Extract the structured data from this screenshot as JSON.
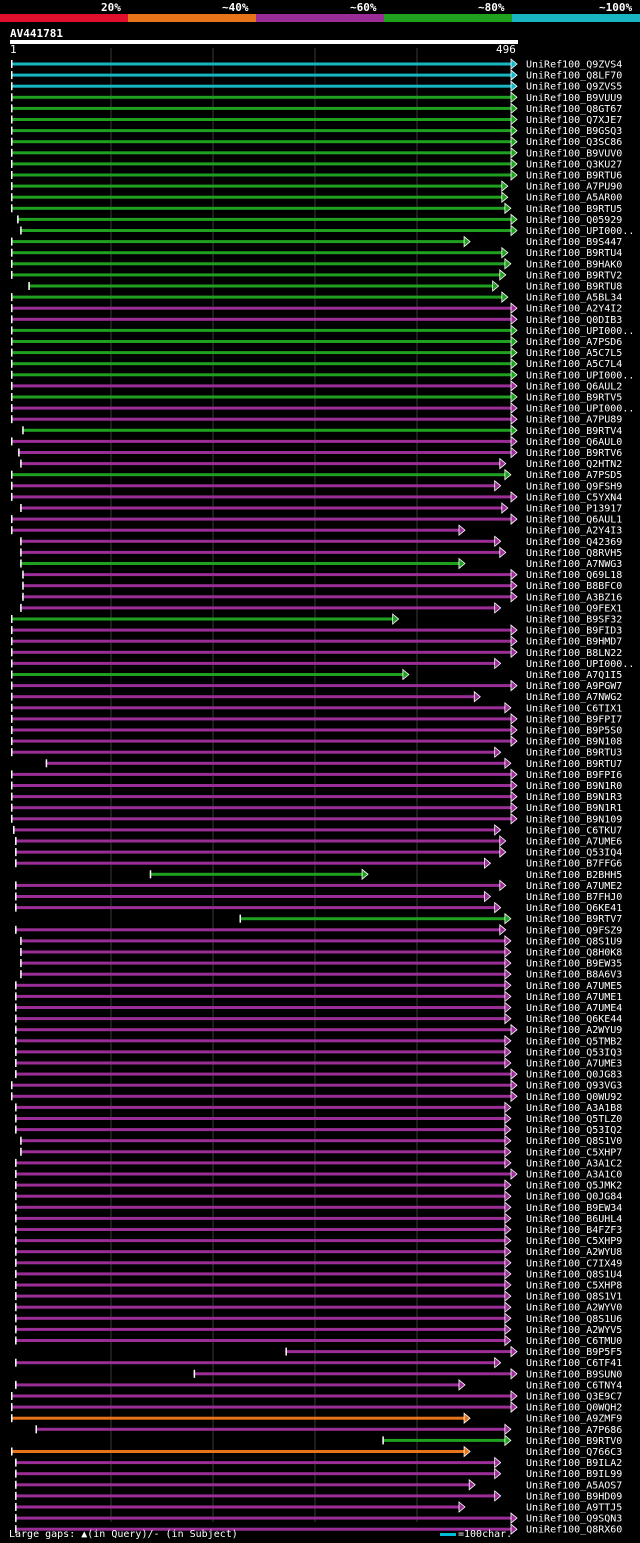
{
  "legend": {
    "items": [
      {
        "label": "20%",
        "color": "#e0102c"
      },
      {
        "label": "~40%",
        "color": "#e8741a"
      },
      {
        "label": "~60%",
        "color": "#9b2d96"
      },
      {
        "label": "~80%",
        "color": "#1fa01f"
      },
      {
        "label": "~100%",
        "color": "#17b6c2"
      }
    ]
  },
  "query": {
    "name": "AV441781",
    "start": "1",
    "end": "496"
  },
  "footer": {
    "gaps_text": "Large gaps: ▲(in Query)/- (in Subject)",
    "scale_text": "=100char."
  },
  "chart_data": {
    "type": "alignment-map",
    "query_length": 496,
    "hits": [
      {
        "id": "UniRef100_Q9ZVS4",
        "start": 1,
        "end": 496,
        "color": "cyan"
      },
      {
        "id": "UniRef100_Q8LF70",
        "start": 1,
        "end": 496,
        "color": "cyan"
      },
      {
        "id": "UniRef100_Q9ZVS5",
        "start": 1,
        "end": 496,
        "color": "cyan"
      },
      {
        "id": "UniRef100_B9VUU9",
        "start": 1,
        "end": 496,
        "color": "green"
      },
      {
        "id": "UniRef100_Q8GT67",
        "start": 1,
        "end": 496,
        "color": "green"
      },
      {
        "id": "UniRef100_Q7XJE7",
        "start": 1,
        "end": 496,
        "color": "green"
      },
      {
        "id": "UniRef100_B9GSQ3",
        "start": 1,
        "end": 496,
        "color": "green"
      },
      {
        "id": "UniRef100_Q3SC86",
        "start": 1,
        "end": 496,
        "color": "green"
      },
      {
        "id": "UniRef100_B9VUV0",
        "start": 1,
        "end": 496,
        "color": "green"
      },
      {
        "id": "UniRef100_Q3KU27",
        "start": 1,
        "end": 496,
        "color": "green"
      },
      {
        "id": "UniRef100_B9RTU6",
        "start": 1,
        "end": 496,
        "color": "green"
      },
      {
        "id": "UniRef100_A7PU90",
        "start": 1,
        "end": 487,
        "color": "green"
      },
      {
        "id": "UniRef100_A5AR00",
        "start": 1,
        "end": 487,
        "color": "green"
      },
      {
        "id": "UniRef100_B9RTU5",
        "start": 1,
        "end": 490,
        "color": "green"
      },
      {
        "id": "UniRef100_Q05929",
        "start": 7,
        "end": 496,
        "color": "green"
      },
      {
        "id": "UniRef100_UPI000..",
        "start": 10,
        "end": 496,
        "color": "green"
      },
      {
        "id": "UniRef100_B9S447",
        "start": 1,
        "end": 450,
        "color": "green"
      },
      {
        "id": "UniRef100_B9RTU4",
        "start": 1,
        "end": 487,
        "color": "green"
      },
      {
        "id": "UniRef100_B9HAK0",
        "start": 1,
        "end": 490,
        "color": "green"
      },
      {
        "id": "UniRef100_B9RTV2",
        "start": 1,
        "end": 485,
        "color": "green"
      },
      {
        "id": "UniRef100_B9RTU8",
        "start": 18,
        "end": 478,
        "color": "green"
      },
      {
        "id": "UniRef100_A5BL34",
        "start": 1,
        "end": 487,
        "color": "green"
      },
      {
        "id": "UniRef100_A2Y4I2",
        "start": 1,
        "end": 496,
        "color": "magenta"
      },
      {
        "id": "UniRef100_Q0DIB3",
        "start": 1,
        "end": 496,
        "color": "magenta"
      },
      {
        "id": "UniRef100_UPI000..",
        "start": 1,
        "end": 496,
        "color": "green"
      },
      {
        "id": "UniRef100_A7PSD6",
        "start": 1,
        "end": 496,
        "color": "green"
      },
      {
        "id": "UniRef100_A5C7L5",
        "start": 1,
        "end": 496,
        "color": "green"
      },
      {
        "id": "UniRef100_A5C7L4",
        "start": 1,
        "end": 496,
        "color": "green"
      },
      {
        "id": "UniRef100_UPI000..",
        "start": 1,
        "end": 496,
        "color": "green"
      },
      {
        "id": "UniRef100_Q6AUL2",
        "start": 1,
        "end": 496,
        "color": "magenta"
      },
      {
        "id": "UniRef100_B9RTV5",
        "start": 1,
        "end": 496,
        "color": "green"
      },
      {
        "id": "UniRef100_UPI000..",
        "start": 1,
        "end": 496,
        "color": "magenta"
      },
      {
        "id": "UniRef100_A7PU89",
        "start": 1,
        "end": 496,
        "color": "magenta"
      },
      {
        "id": "UniRef100_B9RTV4",
        "start": 12,
        "end": 496,
        "color": "green"
      },
      {
        "id": "UniRef100_Q6AUL0",
        "start": 1,
        "end": 496,
        "color": "magenta"
      },
      {
        "id": "UniRef100_B9RTV6",
        "start": 8,
        "end": 496,
        "color": "magenta"
      },
      {
        "id": "UniRef100_Q2HTN2",
        "start": 10,
        "end": 485,
        "color": "magenta"
      },
      {
        "id": "UniRef100_A7PSD5",
        "start": 1,
        "end": 490,
        "color": "green"
      },
      {
        "id": "UniRef100_Q9FSH9",
        "start": 1,
        "end": 480,
        "color": "magenta"
      },
      {
        "id": "UniRef100_C5YXN4",
        "start": 1,
        "end": 496,
        "color": "magenta"
      },
      {
        "id": "UniRef100_P13917",
        "start": 10,
        "end": 487,
        "color": "magenta"
      },
      {
        "id": "UniRef100_Q6AUL1",
        "start": 1,
        "end": 496,
        "color": "magenta"
      },
      {
        "id": "UniRef100_A2Y4I3",
        "start": 1,
        "end": 445,
        "color": "magenta"
      },
      {
        "id": "UniRef100_Q42369",
        "start": 10,
        "end": 480,
        "color": "magenta"
      },
      {
        "id": "UniRef100_Q8RVH5",
        "start": 10,
        "end": 485,
        "color": "magenta"
      },
      {
        "id": "UniRef100_A7NWG3",
        "start": 10,
        "end": 445,
        "color": "green"
      },
      {
        "id": "UniRef100_Q69L18",
        "start": 12,
        "end": 496,
        "color": "magenta"
      },
      {
        "id": "UniRef100_B8BFC0",
        "start": 12,
        "end": 496,
        "color": "magenta"
      },
      {
        "id": "UniRef100_A3BZ16",
        "start": 12,
        "end": 496,
        "color": "magenta"
      },
      {
        "id": "UniRef100_Q9FEX1",
        "start": 10,
        "end": 480,
        "color": "magenta"
      },
      {
        "id": "UniRef100_B9SF32",
        "start": 1,
        "end": 380,
        "color": "green"
      },
      {
        "id": "UniRef100_B9FID3",
        "start": 1,
        "end": 496,
        "color": "magenta"
      },
      {
        "id": "UniRef100_B9HMD7",
        "start": 1,
        "end": 496,
        "color": "magenta"
      },
      {
        "id": "UniRef100_B8LN22",
        "start": 1,
        "end": 496,
        "color": "magenta"
      },
      {
        "id": "UniRef100_UPI000..",
        "start": 1,
        "end": 480,
        "color": "magenta"
      },
      {
        "id": "UniRef100_A7Q1I5",
        "start": 1,
        "end": 390,
        "color": "green"
      },
      {
        "id": "UniRef100_A9PGW7",
        "start": 1,
        "end": 496,
        "color": "magenta"
      },
      {
        "id": "UniRef100_A7NWG2",
        "start": 1,
        "end": 460,
        "color": "magenta"
      },
      {
        "id": "UniRef100_C6TIX1",
        "start": 1,
        "end": 490,
        "color": "magenta"
      },
      {
        "id": "UniRef100_B9FPI7",
        "start": 1,
        "end": 496,
        "color": "magenta"
      },
      {
        "id": "UniRef100_B9P5S0",
        "start": 1,
        "end": 496,
        "color": "magenta"
      },
      {
        "id": "UniRef100_B9N108",
        "start": 1,
        "end": 496,
        "color": "magenta"
      },
      {
        "id": "UniRef100_B9RTU3",
        "start": 1,
        "end": 480,
        "color": "magenta"
      },
      {
        "id": "UniRef100_B9RTU7",
        "start": 35,
        "end": 490,
        "color": "magenta"
      },
      {
        "id": "UniRef100_B9FPI6",
        "start": 1,
        "end": 496,
        "color": "magenta"
      },
      {
        "id": "UniRef100_B9N1R0",
        "start": 1,
        "end": 496,
        "color": "magenta"
      },
      {
        "id": "UniRef100_B9N1R3",
        "start": 1,
        "end": 496,
        "color": "magenta"
      },
      {
        "id": "UniRef100_B9N1R1",
        "start": 1,
        "end": 496,
        "color": "magenta"
      },
      {
        "id": "UniRef100_B9N109",
        "start": 1,
        "end": 496,
        "color": "magenta"
      },
      {
        "id": "UniRef100_C6TKU7",
        "start": 3,
        "end": 480,
        "color": "magenta"
      },
      {
        "id": "UniRef100_A7UME6",
        "start": 5,
        "end": 485,
        "color": "magenta"
      },
      {
        "id": "UniRef100_Q53IQ4",
        "start": 5,
        "end": 485,
        "color": "magenta"
      },
      {
        "id": "UniRef100_B7FFG6",
        "start": 5,
        "end": 470,
        "color": "magenta"
      },
      {
        "id": "UniRef100_B2BHH5",
        "start": 137,
        "end": 350,
        "color": "green"
      },
      {
        "id": "UniRef100_A7UME2",
        "start": 5,
        "end": 485,
        "color": "magenta"
      },
      {
        "id": "UniRef100_B7FHJ0",
        "start": 5,
        "end": 470,
        "color": "magenta"
      },
      {
        "id": "UniRef100_Q6KE41",
        "start": 5,
        "end": 480,
        "color": "magenta"
      },
      {
        "id": "UniRef100_B9RTV7",
        "start": 225,
        "end": 490,
        "color": "green"
      },
      {
        "id": "UniRef100_Q9FSZ9",
        "start": 5,
        "end": 485,
        "color": "magenta"
      },
      {
        "id": "UniRef100_Q8S1U9",
        "start": 10,
        "end": 490,
        "color": "magenta"
      },
      {
        "id": "UniRef100_Q8H0K8",
        "start": 10,
        "end": 490,
        "color": "magenta"
      },
      {
        "id": "UniRef100_B9EW35",
        "start": 10,
        "end": 490,
        "color": "magenta"
      },
      {
        "id": "UniRef100_B8A6V3",
        "start": 10,
        "end": 490,
        "color": "magenta"
      },
      {
        "id": "UniRef100_A7UME5",
        "start": 5,
        "end": 490,
        "color": "magenta"
      },
      {
        "id": "UniRef100_A7UME1",
        "start": 5,
        "end": 490,
        "color": "magenta"
      },
      {
        "id": "UniRef100_A7UME4",
        "start": 5,
        "end": 490,
        "color": "magenta"
      },
      {
        "id": "UniRef100_Q6KE44",
        "start": 5,
        "end": 490,
        "color": "magenta"
      },
      {
        "id": "UniRef100_A2WYU9",
        "start": 5,
        "end": 496,
        "color": "magenta"
      },
      {
        "id": "UniRef100_Q5TMB2",
        "start": 5,
        "end": 490,
        "color": "magenta"
      },
      {
        "id": "UniRef100_Q53IQ3",
        "start": 5,
        "end": 490,
        "color": "magenta"
      },
      {
        "id": "UniRef100_A7UME3",
        "start": 5,
        "end": 490,
        "color": "magenta"
      },
      {
        "id": "UniRef100_Q0JG83",
        "start": 5,
        "end": 496,
        "color": "magenta"
      },
      {
        "id": "UniRef100_Q93VG3",
        "start": 1,
        "end": 496,
        "color": "magenta"
      },
      {
        "id": "UniRef100_Q0WU92",
        "start": 1,
        "end": 496,
        "color": "magenta"
      },
      {
        "id": "UniRef100_A3A1B8",
        "start": 5,
        "end": 490,
        "color": "magenta"
      },
      {
        "id": "UniRef100_Q5TLZ0",
        "start": 5,
        "end": 490,
        "color": "magenta"
      },
      {
        "id": "UniRef100_Q53IQ2",
        "start": 5,
        "end": 490,
        "color": "magenta"
      },
      {
        "id": "UniRef100_Q8S1V0",
        "start": 10,
        "end": 490,
        "color": "magenta"
      },
      {
        "id": "UniRef100_C5XHP7",
        "start": 10,
        "end": 490,
        "color": "magenta"
      },
      {
        "id": "UniRef100_A3A1C2",
        "start": 5,
        "end": 490,
        "color": "magenta"
      },
      {
        "id": "UniRef100_A3A1C0",
        "start": 5,
        "end": 496,
        "color": "magenta"
      },
      {
        "id": "UniRef100_Q5JMK2",
        "start": 5,
        "end": 490,
        "color": "magenta"
      },
      {
        "id": "UniRef100_Q0JG84",
        "start": 5,
        "end": 490,
        "color": "magenta"
      },
      {
        "id": "UniRef100_B9EW34",
        "start": 5,
        "end": 490,
        "color": "magenta"
      },
      {
        "id": "UniRef100_B6UHL4",
        "start": 5,
        "end": 490,
        "color": "magenta"
      },
      {
        "id": "UniRef100_B4FZF3",
        "start": 5,
        "end": 490,
        "color": "magenta"
      },
      {
        "id": "UniRef100_C5XHP9",
        "start": 5,
        "end": 490,
        "color": "magenta"
      },
      {
        "id": "UniRef100_A2WYU8",
        "start": 5,
        "end": 490,
        "color": "magenta"
      },
      {
        "id": "UniRef100_C7IX49",
        "start": 5,
        "end": 490,
        "color": "magenta"
      },
      {
        "id": "UniRef100_Q8S1U4",
        "start": 5,
        "end": 490,
        "color": "magenta"
      },
      {
        "id": "UniRef100_C5XHP8",
        "start": 5,
        "end": 490,
        "color": "magenta"
      },
      {
        "id": "UniRef100_Q8S1V1",
        "start": 5,
        "end": 490,
        "color": "magenta"
      },
      {
        "id": "UniRef100_A2WYV0",
        "start": 5,
        "end": 490,
        "color": "magenta"
      },
      {
        "id": "UniRef100_Q8S1U6",
        "start": 5,
        "end": 490,
        "color": "magenta"
      },
      {
        "id": "UniRef100_A2WYV5",
        "start": 5,
        "end": 490,
        "color": "magenta"
      },
      {
        "id": "UniRef100_C6TMU0",
        "start": 5,
        "end": 490,
        "color": "magenta"
      },
      {
        "id": "UniRef100_B9P5F5",
        "start": 270,
        "end": 496,
        "color": "magenta"
      },
      {
        "id": "UniRef100_C6TF41",
        "start": 5,
        "end": 480,
        "color": "magenta"
      },
      {
        "id": "UniRef100_B9SUN0",
        "start": 180,
        "end": 496,
        "color": "magenta"
      },
      {
        "id": "UniRef100_C6TNY4",
        "start": 5,
        "end": 445,
        "color": "magenta"
      },
      {
        "id": "UniRef100_Q3E9C7",
        "start": 1,
        "end": 496,
        "color": "magenta"
      },
      {
        "id": "UniRef100_Q0WQH2",
        "start": 1,
        "end": 496,
        "color": "magenta"
      },
      {
        "id": "UniRef100_A9ZMF9",
        "start": 1,
        "end": 450,
        "color": "orange"
      },
      {
        "id": "UniRef100_A7P686",
        "start": 25,
        "end": 490,
        "color": "magenta"
      },
      {
        "id": "UniRef100_B9RTV0",
        "start": 365,
        "end": 490,
        "color": "green"
      },
      {
        "id": "UniRef100_Q766C3",
        "start": 1,
        "end": 450,
        "color": "orange"
      },
      {
        "id": "UniRef100_B9ILA2",
        "start": 5,
        "end": 480,
        "color": "magenta"
      },
      {
        "id": "UniRef100_B9IL99",
        "start": 5,
        "end": 480,
        "color": "magenta"
      },
      {
        "id": "UniRef100_A5AOS7",
        "start": 5,
        "end": 455,
        "color": "magenta"
      },
      {
        "id": "UniRef100_B9HD09",
        "start": 5,
        "end": 480,
        "color": "magenta"
      },
      {
        "id": "UniRef100_A9TTJ5",
        "start": 5,
        "end": 445,
        "color": "magenta"
      },
      {
        "id": "UniRef100_Q9SQN3",
        "start": 5,
        "end": 496,
        "color": "magenta"
      },
      {
        "id": "UniRef100_Q8RX60",
        "start": 5,
        "end": 496,
        "color": "magenta"
      }
    ]
  }
}
